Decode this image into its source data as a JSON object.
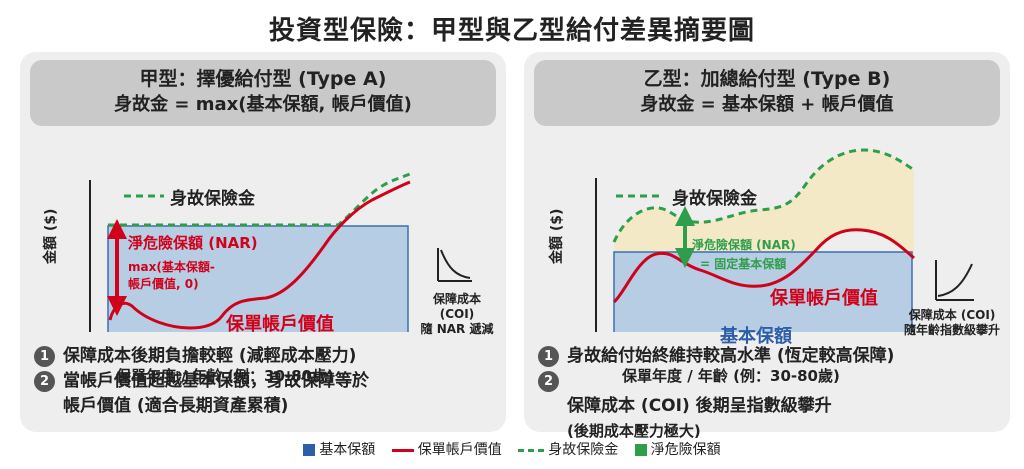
{
  "title": "投資型保險：甲型與乙型給付差異摘要圖",
  "colors": {
    "base_fill": "#b7cde3",
    "base_stroke": "#3b6fb0",
    "account_value": "#d0021b",
    "death_benefit": "#2e9e4a",
    "nar_fill": "#f3e9c6",
    "legend_base": "#2d5ea8"
  },
  "panel_a": {
    "heading": "甲型：擇優給付型 (Type A)",
    "formula": "身故金 = max(基本保額, 帳戶價值)",
    "y_axis_label": "金額 ($)",
    "x_axis_label": "保單年度 / 年齡 (例：30-80歲)",
    "death_benefit_label": "身故保險金",
    "nar_label": "淨危險保額 (NAR)",
    "nar_formula_line1": "max(基本保額-",
    "nar_formula_line2": "帳戶價值, 0)",
    "account_value_label": "保單帳戶價值",
    "coi_label_line1": "保障成本",
    "coi_label_line2": "(COI)",
    "coi_label_line3": "隨 NAR 遞減",
    "coi_trend": "decreasing",
    "notes": [
      {
        "num": "1",
        "text": "保障成本後期負擔較輕 (減輕成本壓力)"
      },
      {
        "num": "2",
        "text": "當帳戶價值超越基本保額，身故保障等於\n帳戶價值 (適合長期資產累積)"
      }
    ]
  },
  "panel_b": {
    "heading": "乙型：加總給付型 (Type B)",
    "formula": "身故金 = 基本保額 + 帳戶價值",
    "y_axis_label": "金額 ($)",
    "x_axis_label": "保單年度 / 年齡 (例：30-80歲)",
    "death_benefit_label": "身故保險金",
    "nar_label": "淨危險保額 (NAR)",
    "nar_sub_label": "= 固定基本保額",
    "account_value_label": "保單帳戶價值",
    "base_label": "基本保額",
    "coi_label_line1": "保障成本 (COI)",
    "coi_label_line2": "隨年齡指數級攀升",
    "coi_trend": "increasing",
    "notes": [
      {
        "num": "1",
        "text": "身故給付始終維持較高水準 (恆定較高保障)"
      },
      {
        "num": "2",
        "text": "保障成本 (COI) 後期呈指數級攀升",
        "sub": "(後期成本壓力極大)"
      }
    ]
  },
  "legend": [
    {
      "type": "box",
      "label": "基本保額"
    },
    {
      "type": "line",
      "label": "保單帳戶價值"
    },
    {
      "type": "dash",
      "label": "身故保險金"
    },
    {
      "type": "box-green",
      "label": "淨危險保額"
    }
  ]
}
